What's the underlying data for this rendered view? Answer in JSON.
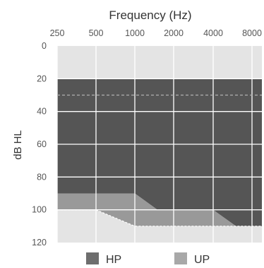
{
  "chart_data": {
    "type": "area",
    "title": "Frequency (Hz)",
    "xlabel": "Frequency (Hz)",
    "ylabel": "dB HL",
    "x_ticks": [
      "250",
      "500",
      "1000",
      "2000",
      "4000",
      "8000"
    ],
    "x_values": [
      250,
      500,
      1000,
      2000,
      4000,
      8000
    ],
    "y_ticks": [
      "0",
      "20",
      "40",
      "60",
      "80",
      "100",
      "120"
    ],
    "ylim": [
      0,
      120
    ],
    "y_inverted": true,
    "grid": true,
    "legend_position": "bottom",
    "reference_line_db": 30,
    "bands": [
      {
        "name": "HP",
        "color": "#555555",
        "upper_db": [
          [
            250,
            20
          ],
          [
            8000,
            20
          ]
        ],
        "lower_db": [
          [
            250,
            90
          ],
          [
            1000,
            90
          ],
          [
            1500,
            100
          ],
          [
            4000,
            100
          ],
          [
            6000,
            110
          ],
          [
            8000,
            110
          ]
        ]
      },
      {
        "name": "UP",
        "color": "#999999",
        "upper_db": [
          [
            250,
            90
          ],
          [
            1000,
            90
          ],
          [
            1500,
            100
          ],
          [
            4000,
            100
          ],
          [
            6000,
            110
          ],
          [
            8000,
            110
          ]
        ],
        "lower_db": [
          [
            250,
            100
          ],
          [
            500,
            100
          ],
          [
            1000,
            110
          ],
          [
            8000,
            110
          ]
        ]
      }
    ],
    "legend": [
      {
        "label": "HP",
        "color": "#6e6e6e"
      },
      {
        "label": "UP",
        "color": "#a8a8a8"
      }
    ]
  }
}
